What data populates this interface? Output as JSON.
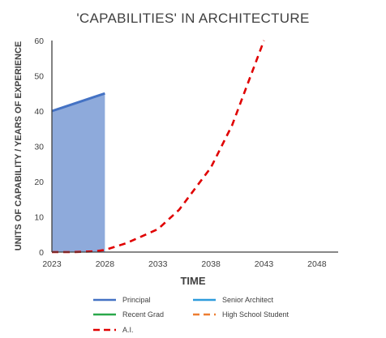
{
  "chart_data": {
    "type": "line",
    "title": "'CAPABILITIES' IN ARCHITECTURE",
    "xlabel": "TIME",
    "ylabel": "UNITS OF CAPABILITY / YEARS OF EXPERIENCE",
    "xlim": [
      2023,
      2050
    ],
    "ylim": [
      0,
      60
    ],
    "x_ticks": [
      2023,
      2028,
      2033,
      2038,
      2043,
      2048
    ],
    "y_ticks": [
      0,
      10,
      20,
      30,
      40,
      50,
      60
    ],
    "grid": false,
    "legend": "bottom",
    "series": [
      {
        "name": "Principal",
        "style": "solid",
        "color": "#4472c4",
        "fill": "#8eaadb",
        "x": [
          2023,
          2024,
          2025,
          2026,
          2027,
          2028
        ],
        "y": [
          40,
          41,
          42,
          43,
          44,
          45
        ]
      },
      {
        "name": "Senior Architect",
        "style": "solid",
        "color": "#2e9cdc",
        "x": [],
        "y": []
      },
      {
        "name": "Recent Grad",
        "style": "solid",
        "color": "#2aa84a",
        "x": [],
        "y": []
      },
      {
        "name": "High School Student",
        "style": "dashed",
        "color": "#ed7d31",
        "x": [],
        "y": []
      },
      {
        "name": "A.I.",
        "style": "dashed",
        "color": "#e00000",
        "x": [
          2023,
          2025,
          2027,
          2028,
          2030,
          2033,
          2035,
          2038,
          2040,
          2043
        ],
        "y": [
          0,
          0,
          0.2,
          0.6,
          2.5,
          6.5,
          12,
          24,
          36,
          60
        ]
      }
    ]
  }
}
